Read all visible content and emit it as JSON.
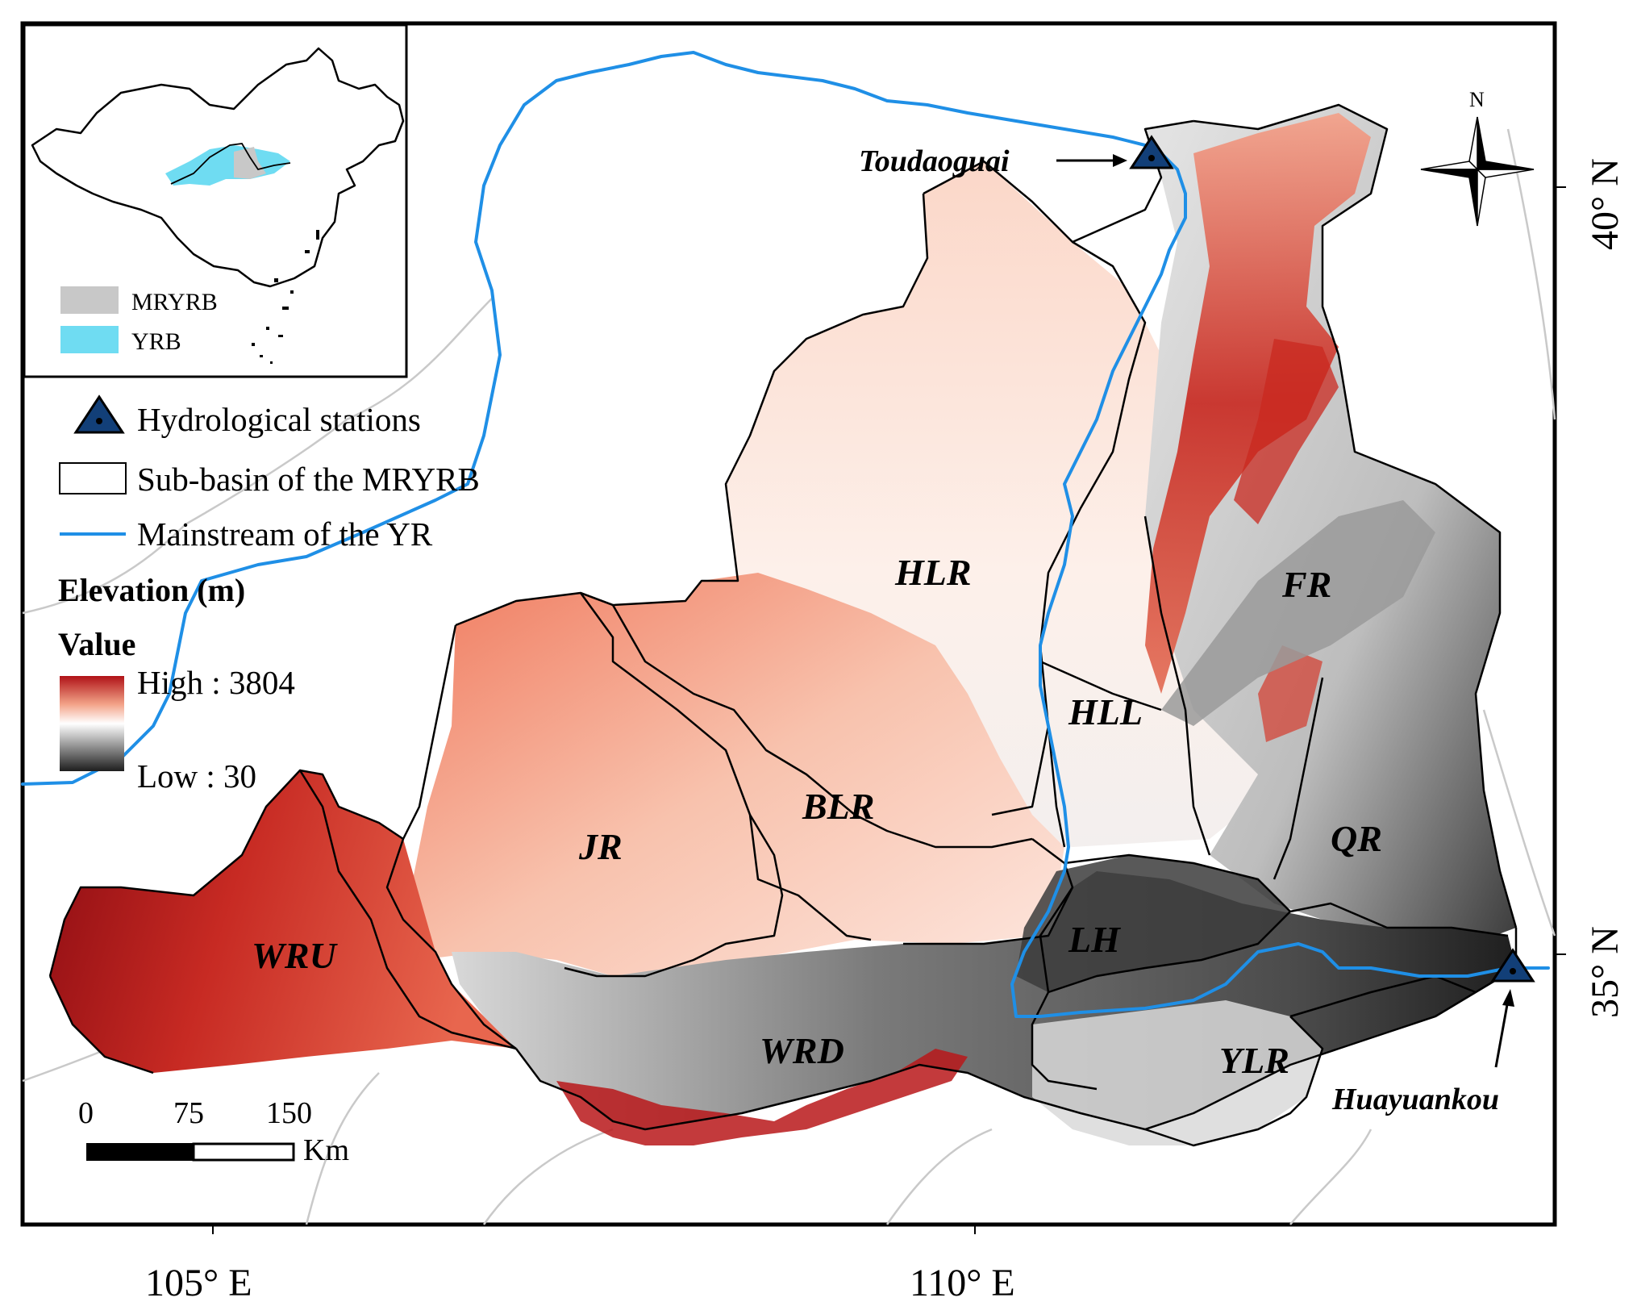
{
  "map": {
    "subbasins": [
      {
        "id": "HLR",
        "label": "HLR"
      },
      {
        "id": "FR",
        "label": "FR"
      },
      {
        "id": "HLL",
        "label": "HLL"
      },
      {
        "id": "BLR",
        "label": "BLR"
      },
      {
        "id": "JR",
        "label": "JR"
      },
      {
        "id": "QR",
        "label": "QR"
      },
      {
        "id": "LH",
        "label": "LH"
      },
      {
        "id": "WRU",
        "label": "WRU"
      },
      {
        "id": "WRD",
        "label": "WRD"
      },
      {
        "id": "YLR",
        "label": "YLR"
      }
    ],
    "stations": [
      {
        "name": "Toudaoguai"
      },
      {
        "name": "Huayuankou"
      }
    ],
    "inset": {
      "legend": [
        {
          "label": "MRYRB",
          "color": "#c8c8c8"
        },
        {
          "label": "YRB",
          "color": "#6fdcf2"
        }
      ]
    },
    "legend": {
      "items": [
        {
          "label": "Hydrological stations",
          "symbol": "triangle-station-icon"
        },
        {
          "label": "Sub-basin of the MRYRB",
          "symbol": "rectangle-outline"
        },
        {
          "label": "Mainstream of the YR",
          "symbol": "blue-line"
        }
      ],
      "elevation_title": "Elevation (m)",
      "value_title": "Value",
      "high_label": "High : 3804",
      "low_label": "Low : 30",
      "ramp_colors": [
        "#b01217",
        "#f3a489",
        "#ffffff",
        "#8e8e8e",
        "#1e1e1e"
      ]
    },
    "scalebar": {
      "ticks": [
        "0",
        "75",
        "150"
      ],
      "unit": "Km"
    },
    "north_arrow": {
      "label": "N"
    },
    "axes": {
      "x_ticks": [
        "105° E",
        "110° E"
      ],
      "y_ticks": [
        "40° N",
        "35° N"
      ]
    },
    "colors": {
      "river": "#1f8fe6",
      "station": "#123f78",
      "high": "#a81016",
      "low": "#202020",
      "boundary": "#000000"
    }
  }
}
